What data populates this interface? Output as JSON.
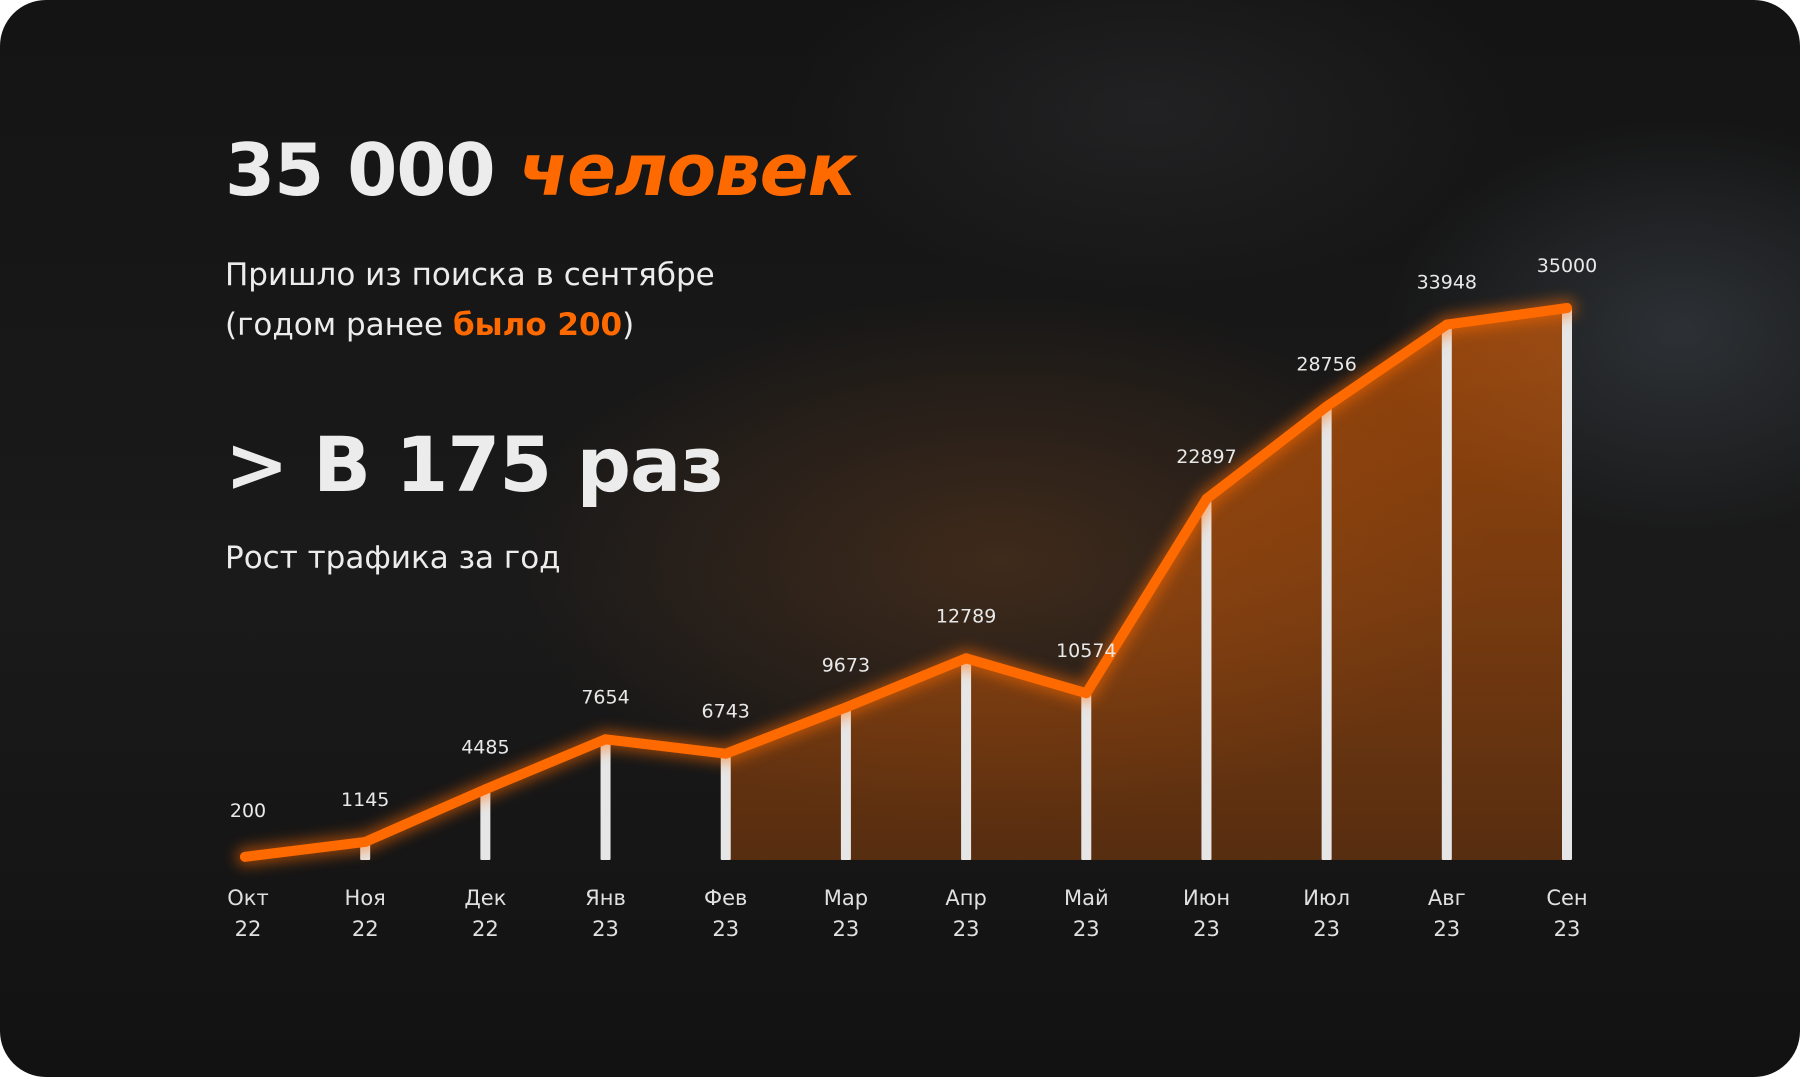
{
  "headline": {
    "number": "35 000",
    "word": "человек"
  },
  "subtitle": {
    "line1": "Пришло из поиска в сентябре",
    "line2_before": "(годом ранее ",
    "line2_highlight": "было 200",
    "line2_after": ")"
  },
  "growth": {
    "title": "> В 175 раз",
    "caption": "Рост трафика за год"
  },
  "colors": {
    "accent": "#ff6a00",
    "text": "#ececec",
    "bar": "#e6e6e6",
    "background": "#151515"
  },
  "chart_data": {
    "type": "line",
    "categories": [
      "Окт 22",
      "Ноя 22",
      "Дек 22",
      "Янв 23",
      "Фев 23",
      "Мар 23",
      "Апр 23",
      "Май 23",
      "Июн 23",
      "Июл 23",
      "Авг 23",
      "Сен 23"
    ],
    "tick_labels": [
      [
        "Окт",
        "22"
      ],
      [
        "Ноя",
        "22"
      ],
      [
        "Дек",
        "22"
      ],
      [
        "Янв",
        "23"
      ],
      [
        "Фев",
        "23"
      ],
      [
        "Мар",
        "23"
      ],
      [
        "Апр",
        "23"
      ],
      [
        "Май",
        "23"
      ],
      [
        "Июн",
        "23"
      ],
      [
        "Июл",
        "23"
      ],
      [
        "Авг",
        "23"
      ],
      [
        "Сен",
        "23"
      ]
    ],
    "series": [
      {
        "values": [
          200,
          1145,
          4485,
          7654,
          6743,
          9673,
          12789,
          10574,
          22897,
          28756,
          33948,
          35000
        ]
      }
    ],
    "ylim": [
      0,
      35000
    ],
    "title": "",
    "xlabel": "",
    "ylabel": "",
    "grid": false,
    "legend": "none"
  }
}
